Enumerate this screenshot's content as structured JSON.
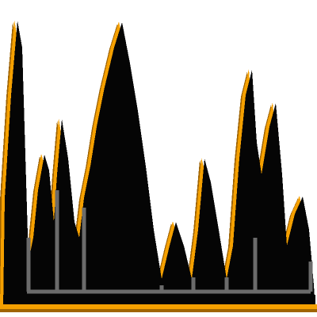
{
  "colors": {
    "background": "#ffffff",
    "fill": "#050505",
    "outline": "#f5a000",
    "outline_dark": "#a06400",
    "grid": "#6b6b6b"
  },
  "shape": {
    "name": "jagged-peaks-silhouette",
    "peaks": 13
  }
}
